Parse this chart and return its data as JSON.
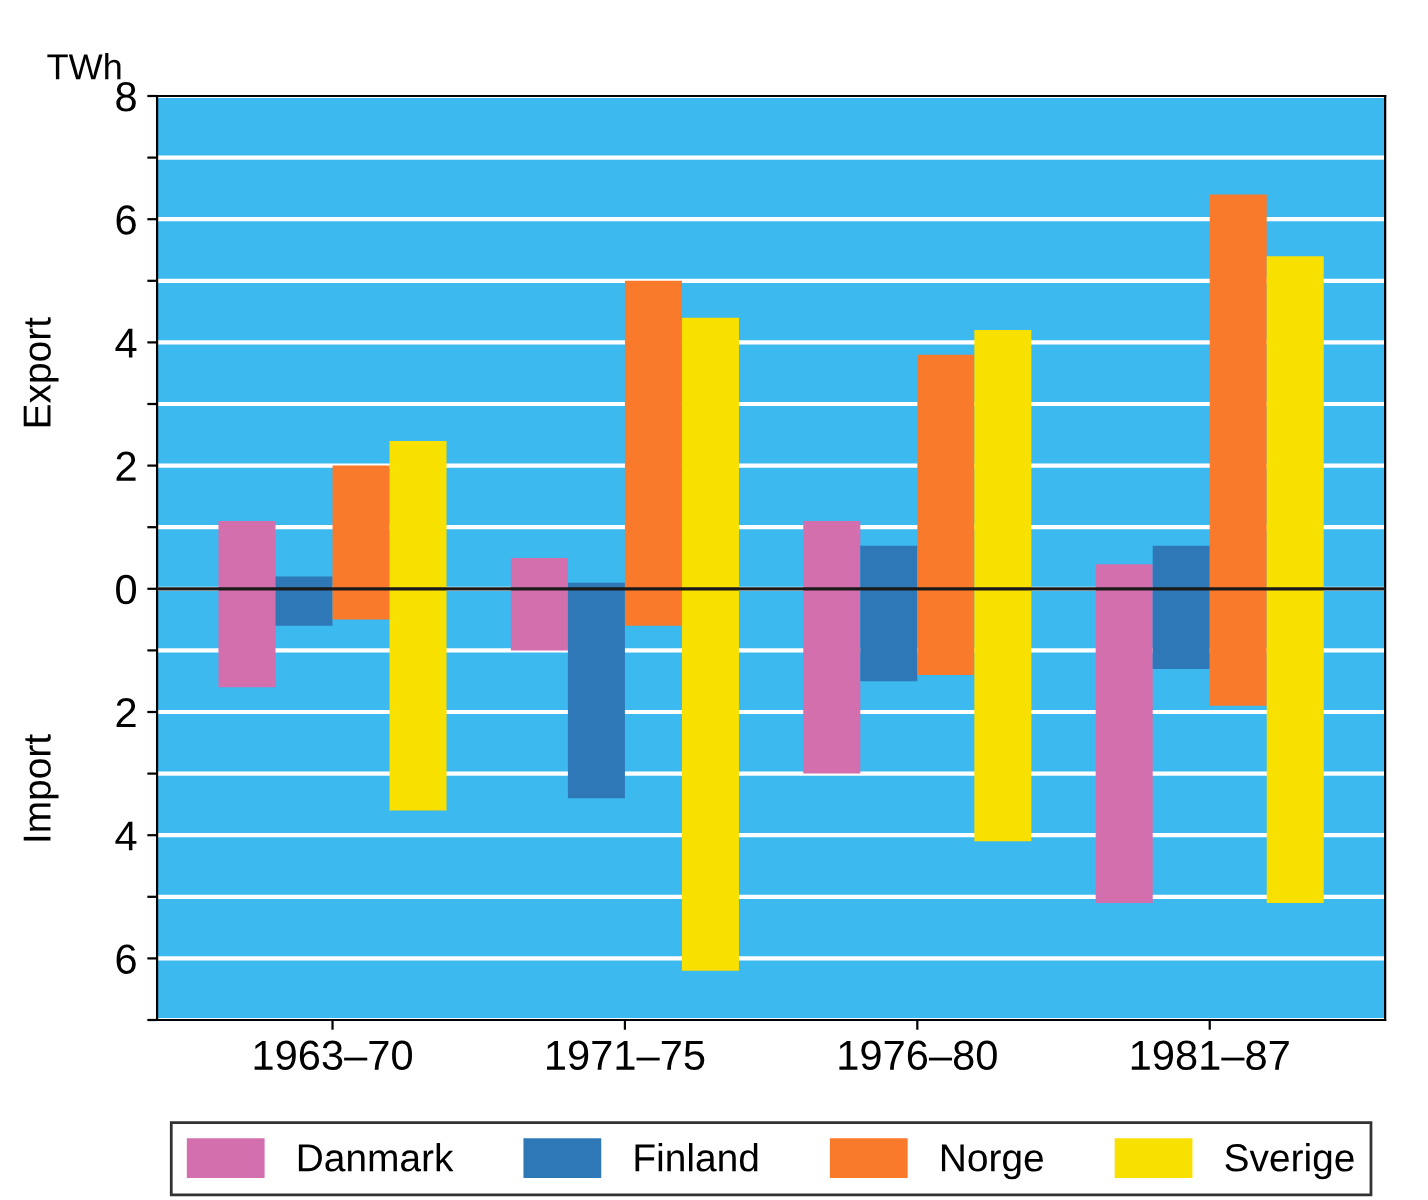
{
  "chart_data": {
    "type": "bar",
    "ylabel": "TWh",
    "annotations": [
      "Export",
      "Import"
    ],
    "categories": [
      "1963–70",
      "1971–75",
      "1976–80",
      "1981–87"
    ],
    "series": [
      {
        "name": "Danmark",
        "color": "#d46fae",
        "base": [
          -1.6,
          -1.0,
          -3.0,
          -5.1
        ],
        "values": [
          2.7,
          1.5,
          4.1,
          5.5
        ]
      },
      {
        "name": "Finland",
        "color": "#2f78b8",
        "base": [
          -0.6,
          -3.4,
          -1.5,
          -1.3
        ],
        "values": [
          0.8,
          3.5,
          2.2,
          2.0
        ]
      },
      {
        "name": "Norge",
        "color": "#f97a2a",
        "base": [
          -0.5,
          -0.6,
          -1.4,
          -1.9
        ],
        "values": [
          2.5,
          5.6,
          5.2,
          8.3
        ]
      },
      {
        "name": "Sverige",
        "color": "#f8e000",
        "base": [
          -3.6,
          -6.2,
          -4.1,
          -5.1
        ],
        "values": [
          6.0,
          10.6,
          8.3,
          10.5
        ]
      }
    ],
    "ylim": [
      -7,
      8
    ],
    "yticks": [
      {
        "value": -7,
        "label": null
      },
      {
        "value": -6,
        "label": "6"
      },
      {
        "value": -5,
        "label": null
      },
      {
        "value": -4,
        "label": "4"
      },
      {
        "value": -3,
        "label": null
      },
      {
        "value": -2,
        "label": "2"
      },
      {
        "value": -1,
        "label": null
      },
      0,
      {
        "value": 1,
        "label": null
      },
      2,
      {
        "value": 3,
        "label": null
      },
      4,
      {
        "value": 5,
        "label": null
      },
      6,
      {
        "value": 7,
        "label": null
      },
      8
    ],
    "ref_lines": [
      {
        "axis": "y",
        "value": 0,
        "color": "#1a1a1a"
      }
    ],
    "grid": "y",
    "legend": "bottom"
  }
}
